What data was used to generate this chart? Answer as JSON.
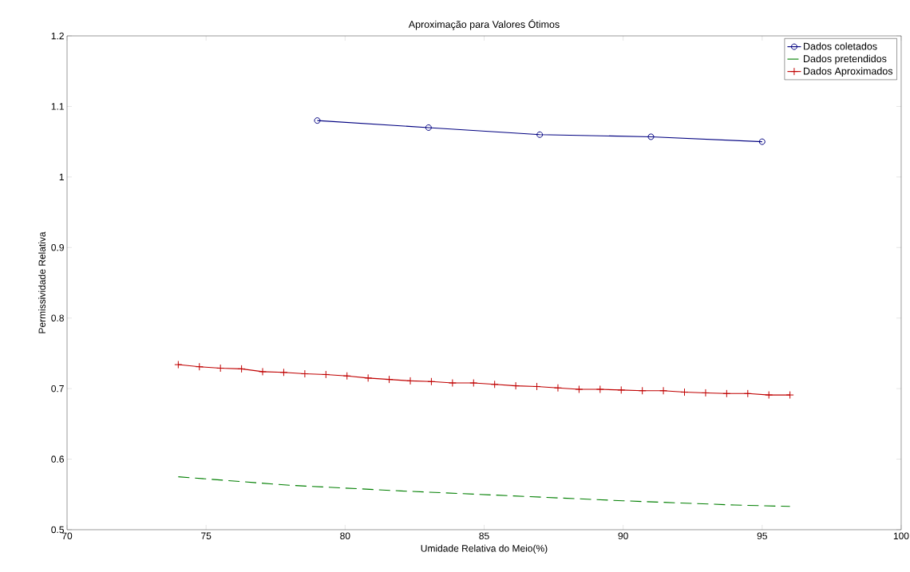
{
  "chart_data": {
    "type": "line",
    "title": "Aproximação para Valores Ótimos",
    "xlabel": "Umidade Relativa do Meio(%)",
    "ylabel": "Permissividade Relativa",
    "xlim": [
      70,
      100
    ],
    "ylim": [
      0.5,
      1.2
    ],
    "xticks": [
      70,
      75,
      80,
      85,
      90,
      95,
      100
    ],
    "yticks": [
      0.5,
      0.6,
      0.7,
      0.8,
      0.9,
      1,
      1.1,
      1.2
    ],
    "grid": false,
    "legend": "top right",
    "series": [
      {
        "name": "Dados coletados",
        "color": "#000080",
        "marker": "circle",
        "line_style": "solid",
        "x": [
          79,
          83,
          87,
          91,
          95
        ],
        "values": [
          1.08,
          1.07,
          1.06,
          1.057,
          1.05
        ]
      },
      {
        "name": "Dados pretendidos",
        "color": "#007f00",
        "marker": "none",
        "line_style": "dashed",
        "x": [
          74,
          78,
          82,
          86,
          90,
          94,
          96
        ],
        "values": [
          0.575,
          0.563,
          0.555,
          0.548,
          0.541,
          0.535,
          0.533
        ]
      },
      {
        "name": "Dados Aproximados",
        "color": "#c00000",
        "marker": "cross",
        "line_style": "solid",
        "x": [
          74,
          74.759,
          75.517,
          76.276,
          77.034,
          77.793,
          78.552,
          79.31,
          80.069,
          80.828,
          81.586,
          82.345,
          83.103,
          83.862,
          84.621,
          85.379,
          86.138,
          86.897,
          87.655,
          88.414,
          89.172,
          89.931,
          90.69,
          91.448,
          92.207,
          92.966,
          93.724,
          94.483,
          95.241,
          96
        ],
        "values": [
          0.734,
          0.731,
          0.729,
          0.728,
          0.724,
          0.723,
          0.721,
          0.72,
          0.718,
          0.715,
          0.713,
          0.711,
          0.71,
          0.708,
          0.708,
          0.706,
          0.704,
          0.703,
          0.701,
          0.699,
          0.699,
          0.698,
          0.697,
          0.697,
          0.695,
          0.694,
          0.693,
          0.693,
          0.691,
          0.691
        ]
      }
    ]
  }
}
